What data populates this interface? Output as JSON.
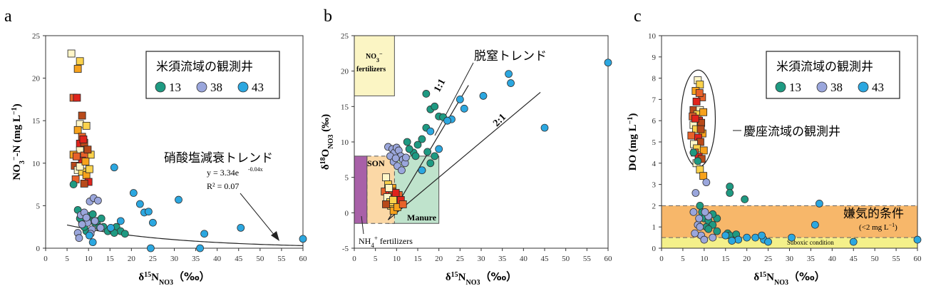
{
  "colors": {
    "series_13": "#1e9a82",
    "series_38": "#9aa6dc",
    "series_43": "#2ba7e0",
    "keiza_gradient": [
      "#fff6c8",
      "#fbd24c",
      "#f7a21c",
      "#e8622a",
      "#e0241c",
      "#b84a1a"
    ],
    "no3_fert_box": "#fbf5c4",
    "son_box": "#fbd8a6",
    "manure_box": "#bfe3cc",
    "nh4_box": "#a860a8",
    "anaerobic_band": "#f7b76a",
    "suboxic_band": "#f4f08a"
  },
  "chart_data": [
    {
      "panel_label": "a",
      "type": "scatter",
      "xlabel": "δ15NNO3（‰）",
      "ylabel": "NO3−-N (mg L−1)",
      "xlim": [
        0,
        60
      ],
      "ylim": [
        0,
        25
      ],
      "xticks": [
        0,
        5,
        10,
        15,
        20,
        25,
        30,
        35,
        40,
        45,
        50,
        55,
        60
      ],
      "yticks": [
        0,
        5,
        10,
        15,
        20,
        25
      ],
      "legend": {
        "title": "米須流域の観測井",
        "entries": [
          "13",
          "38",
          "43"
        ],
        "placement": "top-right"
      },
      "annotations": {
        "trend_label": "硝酸塩減衰トレンド",
        "equation": "y = 3.34e",
        "exponent": "-0.04x",
        "r2": "R² = 0.07"
      },
      "trend": {
        "a": 3.34,
        "b": -0.04,
        "x_start": 5,
        "x_end": 60
      },
      "series": [
        {
          "name": "13",
          "points": [
            [
              6.5,
              7.5
            ],
            [
              7.5,
              4.5
            ],
            [
              8.5,
              3.0
            ],
            [
              9.5,
              2.0
            ],
            [
              10.5,
              3.5
            ],
            [
              11.5,
              3.0
            ],
            [
              12.5,
              2.5
            ],
            [
              13.5,
              2.5
            ],
            [
              14.5,
              2.0
            ],
            [
              15.5,
              2.2
            ],
            [
              16.5,
              2.5
            ],
            [
              17.5,
              2.0
            ],
            [
              18.5,
              1.7
            ],
            [
              10,
              3.8
            ],
            [
              11,
              4.0
            ],
            [
              9,
              2.5
            ],
            [
              12,
              3.2
            ],
            [
              8,
              3.5
            ],
            [
              13,
              3.5
            ],
            [
              16,
              1.8
            ]
          ]
        },
        {
          "name": "38",
          "points": [
            [
              7.5,
              1.8
            ],
            [
              8.2,
              3.9
            ],
            [
              9,
              4.2
            ],
            [
              9.8,
              3.0
            ],
            [
              10.3,
              5.5
            ],
            [
              11.2,
              5.9
            ],
            [
              12.2,
              5.6
            ],
            [
              8.5,
              2.8
            ],
            [
              9.5,
              3.6
            ],
            [
              10.8,
              2.2
            ],
            [
              11.5,
              3.2
            ],
            [
              7.8,
              1.2
            ],
            [
              10.5,
              1.7
            ],
            [
              12.8,
              2.4
            ]
          ]
        },
        {
          "name": "43",
          "points": [
            [
              16,
              9.5
            ],
            [
              20.5,
              6.5
            ],
            [
              22,
              5.2
            ],
            [
              23,
              4.2
            ],
            [
              24,
              4.3
            ],
            [
              25,
              3.0
            ],
            [
              31,
              5.7
            ],
            [
              37,
              1.7
            ],
            [
              45.5,
              2.4
            ],
            [
              60,
              1.1
            ],
            [
              24.5,
              0.0
            ],
            [
              36,
              0.0
            ],
            [
              10.2,
              1.5
            ],
            [
              11,
              0.7
            ],
            [
              15.2,
              2.4
            ],
            [
              17.5,
              3.2
            ]
          ]
        }
      ],
      "keiza_points": [
        [
          6,
          22.9
        ],
        [
          8,
          22.0
        ],
        [
          7.5,
          21.1
        ],
        [
          6.5,
          17.7
        ],
        [
          7.3,
          17.7
        ],
        [
          8.5,
          15.6
        ],
        [
          8,
          14.6
        ],
        [
          9.5,
          14.4
        ],
        [
          7.5,
          13.9
        ],
        [
          8.5,
          13.1
        ],
        [
          8,
          12.3
        ],
        [
          9,
          12.4
        ],
        [
          8,
          11.5
        ],
        [
          10.5,
          11.0
        ],
        [
          6.5,
          11.0
        ],
        [
          9,
          10.9
        ],
        [
          8.5,
          10.3
        ],
        [
          6.8,
          9.7
        ],
        [
          7.5,
          9.2
        ],
        [
          8.5,
          9.0
        ],
        [
          9.5,
          8.6
        ],
        [
          7,
          8.1
        ],
        [
          10,
          7.8
        ],
        [
          9,
          7.6
        ],
        [
          8,
          9.6
        ],
        [
          10.2,
          9.3
        ],
        [
          9.3,
          10.2
        ],
        [
          7.2,
          10.8
        ],
        [
          8.8,
          12.8
        ],
        [
          9.8,
          11.6
        ]
      ]
    },
    {
      "panel_label": "b",
      "type": "scatter",
      "xlabel": "δ15NNO3（‰）",
      "ylabel": "δ18ONO3 (‰)",
      "xlim": [
        0,
        60
      ],
      "ylim": [
        -5,
        25
      ],
      "xticks": [
        0,
        5,
        10,
        15,
        20,
        25,
        30,
        35,
        40,
        45,
        50,
        55,
        60
      ],
      "yticks": [
        -5,
        0,
        5,
        10,
        15,
        20,
        25
      ],
      "annotations": {
        "denit_trend": "脱窒トレンド",
        "line_1to1": "1:1",
        "line_2to1": "2:1",
        "son": "SON",
        "manure": "Manure",
        "no3_fert_line1": "NO3−",
        "no3_fert_line2": "fertilizers",
        "nh4_fert": "NH4+ fertilizers"
      },
      "regions": {
        "no3_fertilizers": [
          0,
          16.5,
          9.5,
          25
        ],
        "son": [
          3,
          -1.5,
          9.5,
          8
        ],
        "manure": [
          8,
          -1.5,
          20,
          8
        ],
        "nh4_fertilizers": [
          0,
          -1.5,
          3,
          8
        ]
      },
      "series": [
        {
          "name": "13",
          "points": [
            [
              17,
              16.8
            ],
            [
              18,
              14.6
            ],
            [
              19,
              15.0
            ],
            [
              20,
              13.6
            ],
            [
              21,
              13.5
            ],
            [
              22,
              13.0
            ],
            [
              17,
              12.0
            ],
            [
              16,
              10.4
            ],
            [
              15,
              9.6
            ],
            [
              14,
              8.5
            ],
            [
              12.5,
              10.0
            ],
            [
              13,
              9.0
            ],
            [
              16,
              6.0
            ],
            [
              18,
              7.0
            ],
            [
              14.5,
              8.0
            ],
            [
              19,
              8.0
            ],
            [
              17.3,
              8.6
            ]
          ]
        },
        {
          "name": "38",
          "points": [
            [
              8,
              9.3
            ],
            [
              9,
              9.0
            ],
            [
              9.5,
              8.5
            ],
            [
              10,
              9.2
            ],
            [
              10.5,
              8.8
            ],
            [
              11,
              8.0
            ],
            [
              11.5,
              7.5
            ],
            [
              12,
              7.0
            ],
            [
              8.5,
              8.0
            ],
            [
              9.3,
              7.2
            ],
            [
              10.2,
              6.6
            ],
            [
              11.2,
              6.0
            ],
            [
              12.2,
              7.8
            ],
            [
              9.8,
              7.7
            ]
          ]
        },
        {
          "name": "43",
          "points": [
            [
              60,
              21.2
            ],
            [
              37,
              18.3
            ],
            [
              36.5,
              19.6
            ],
            [
              30.5,
              16.5
            ],
            [
              25,
              16.0
            ],
            [
              26,
              14.7
            ],
            [
              23,
              13.2
            ],
            [
              22,
              13.0
            ],
            [
              18,
              11.5
            ],
            [
              20,
              9.0
            ],
            [
              45,
              12.0
            ],
            [
              16,
              6.0
            ]
          ]
        }
      ],
      "keiza_points": [
        [
          7.5,
          5.0
        ],
        [
          8,
          4.0
        ],
        [
          9,
          3.5
        ],
        [
          7.2,
          3.0
        ],
        [
          8.3,
          2.5
        ],
        [
          9.5,
          2.0
        ],
        [
          10,
          1.5
        ],
        [
          8.7,
          1.0
        ],
        [
          9.3,
          0.3
        ],
        [
          10.5,
          2.5
        ],
        [
          11,
          1.8
        ],
        [
          9,
          3.0
        ],
        [
          7.8,
          2.2
        ],
        [
          8.5,
          1.5
        ],
        [
          10.2,
          0.8
        ],
        [
          11.5,
          1.2
        ],
        [
          9.8,
          2.8
        ],
        [
          7.5,
          1.2
        ],
        [
          8.2,
          3.5
        ],
        [
          9.2,
          1.8
        ]
      ]
    },
    {
      "panel_label": "c",
      "type": "scatter",
      "xlabel": "δ15NNO3（‰）",
      "ylabel": "DO (mg L−1)",
      "xlim": [
        0,
        60
      ],
      "ylim": [
        0,
        10
      ],
      "xticks": [
        0,
        5,
        10,
        15,
        20,
        25,
        30,
        35,
        40,
        45,
        50,
        55,
        60
      ],
      "yticks": [
        0,
        1,
        2,
        3,
        4,
        5,
        6,
        7,
        8,
        9,
        10
      ],
      "legend": {
        "title": "米須流域の観測井",
        "entries": [
          "13",
          "38",
          "43"
        ],
        "placement": "top-right"
      },
      "annotations": {
        "keiza_label": "慶座流域の観測井",
        "anaerobic": "嫌気的条件",
        "anaerobic_sub": "(<2 mg L−1)",
        "suboxic": "Suboxic condition"
      },
      "bands": {
        "anaerobic": [
          0.5,
          2.0
        ],
        "suboxic": [
          0,
          0.5
        ]
      },
      "series": [
        {
          "name": "13",
          "points": [
            [
              16,
              2.9
            ],
            [
              16,
              2.6
            ],
            [
              19.5,
              2.3
            ],
            [
              7.5,
              4.5
            ],
            [
              8.5,
              4.1
            ],
            [
              9.5,
              1.7
            ],
            [
              10,
              1.4
            ],
            [
              10.5,
              1.0
            ],
            [
              11,
              1.3
            ],
            [
              12,
              1.1
            ],
            [
              13,
              1.4
            ],
            [
              13,
              0.8
            ],
            [
              15.5,
              0.7
            ],
            [
              16,
              0.6
            ],
            [
              17.5,
              0.65
            ],
            [
              9,
              2.0
            ],
            [
              11,
              0.9
            ],
            [
              12,
              1.6
            ]
          ]
        },
        {
          "name": "38",
          "points": [
            [
              8,
              2.6
            ],
            [
              7.5,
              1.7
            ],
            [
              8.5,
              1.1
            ],
            [
              9.3,
              0.6
            ],
            [
              10,
              0.4
            ],
            [
              10.5,
              3.1
            ],
            [
              11,
              1.5
            ],
            [
              7.8,
              0.7
            ],
            [
              9,
              1.0
            ],
            [
              10.2,
              1.7
            ],
            [
              12,
              0.5
            ],
            [
              8.8,
              1.4
            ]
          ]
        },
        {
          "name": "43",
          "points": [
            [
              37,
              2.1
            ],
            [
              36,
              1.1
            ],
            [
              20,
              0.5
            ],
            [
              22,
              0.5
            ],
            [
              24,
              0.4
            ],
            [
              25,
              0.3
            ],
            [
              30.5,
              0.5
            ],
            [
              23.5,
              0.6
            ],
            [
              45,
              0.3
            ],
            [
              60,
              0.4
            ],
            [
              18,
              0.4
            ],
            [
              16.5,
              0.35
            ],
            [
              15,
              0.6
            ]
          ]
        }
      ],
      "keiza_points": [
        [
          8.5,
          7.9
        ],
        [
          9,
          7.7
        ],
        [
          8,
          7.4
        ],
        [
          9.5,
          7.1
        ],
        [
          8.2,
          6.9
        ],
        [
          7.5,
          6.5
        ],
        [
          9,
          6.5
        ],
        [
          8.4,
          6.3
        ],
        [
          9.8,
          6.4
        ],
        [
          7.3,
          6.2
        ],
        [
          8.8,
          6.0
        ],
        [
          9.3,
          5.9
        ],
        [
          7.5,
          5.8
        ],
        [
          8.1,
          5.6
        ],
        [
          9.6,
          5.4
        ],
        [
          7,
          5.3
        ],
        [
          8.6,
          5.2
        ],
        [
          9.1,
          5.0
        ],
        [
          7.6,
          4.9
        ],
        [
          8.3,
          4.7
        ],
        [
          9.9,
          4.6
        ],
        [
          7.8,
          4.5
        ],
        [
          8.7,
          4.3
        ],
        [
          9.4,
          4.2
        ],
        [
          8.2,
          4.0
        ],
        [
          9.0,
          3.7
        ],
        [
          9.8,
          3.4
        ],
        [
          8.9,
          7.3
        ],
        [
          7.9,
          6.1
        ],
        [
          9.2,
          5.6
        ]
      ]
    }
  ]
}
